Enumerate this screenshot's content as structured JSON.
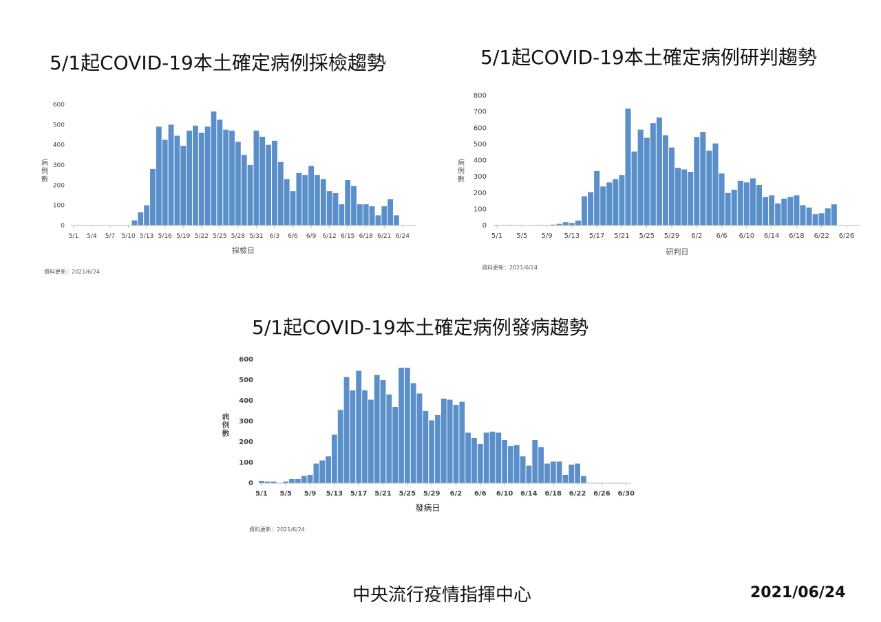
{
  "charts": {
    "sampling": {
      "title": "5/1起COVID-19本土確定病例採檢趨勢",
      "update": "資料更新：2021/6/24",
      "chart_data": {
        "type": "bar",
        "xlabel": "採檢日",
        "ylabel": "病例數",
        "ylim": [
          0,
          600
        ],
        "yticks": [
          0,
          100,
          200,
          300,
          400,
          500,
          600
        ],
        "start_label": "5/1",
        "tick_labels": [
          "5/1",
          "5/4",
          "5/7",
          "5/10",
          "5/13",
          "5/16",
          "5/19",
          "5/22",
          "5/25",
          "5/28",
          "5/31",
          "6/3",
          "6/6",
          "6/9",
          "6/12",
          "6/15",
          "6/18",
          "6/21",
          "6/24"
        ],
        "categories": [
          "5/1",
          "5/2",
          "5/3",
          "5/4",
          "5/5",
          "5/6",
          "5/7",
          "5/8",
          "5/9",
          "5/10",
          "5/11",
          "5/12",
          "5/13",
          "5/14",
          "5/15",
          "5/16",
          "5/17",
          "5/18",
          "5/19",
          "5/20",
          "5/21",
          "5/22",
          "5/23",
          "5/24",
          "5/25",
          "5/26",
          "5/27",
          "5/28",
          "5/29",
          "5/30",
          "5/31",
          "6/1",
          "6/2",
          "6/3",
          "6/4",
          "6/5",
          "6/6",
          "6/7",
          "6/8",
          "6/9",
          "6/10",
          "6/11",
          "6/12",
          "6/13",
          "6/14",
          "6/15",
          "6/16",
          "6/17",
          "6/18",
          "6/19",
          "6/20",
          "6/21",
          "6/22",
          "6/23",
          "6/24"
        ],
        "values": [
          0,
          0,
          0,
          0,
          0,
          0,
          0,
          0,
          0,
          0,
          25,
          65,
          100,
          280,
          490,
          425,
          500,
          445,
          395,
          470,
          495,
          460,
          490,
          565,
          525,
          475,
          470,
          415,
          350,
          300,
          470,
          440,
          400,
          420,
          315,
          230,
          170,
          260,
          250,
          295,
          250,
          230,
          170,
          160,
          105,
          225,
          195,
          105,
          105,
          95,
          50,
          95,
          130,
          50,
          0
        ]
      }
    },
    "confirmation": {
      "title": "5/1起COVID-19本土確定病例研判趨勢",
      "update": "資料更新：2021/6/24",
      "chart_data": {
        "type": "bar",
        "xlabel": "研判日",
        "ylabel": "病例數",
        "ylim": [
          0,
          800
        ],
        "yticks": [
          0,
          100,
          200,
          300,
          400,
          500,
          600,
          700,
          800
        ],
        "tick_labels": [
          "5/1",
          "5/5",
          "5/9",
          "5/13",
          "5/17",
          "5/21",
          "5/25",
          "5/29",
          "6/2",
          "6/6",
          "6/10",
          "6/14",
          "6/18",
          "6/22",
          "6/26"
        ],
        "categories": [
          "5/1",
          "5/2",
          "5/3",
          "5/4",
          "5/5",
          "5/6",
          "5/7",
          "5/8",
          "5/9",
          "5/10",
          "5/11",
          "5/12",
          "5/13",
          "5/14",
          "5/15",
          "5/16",
          "5/17",
          "5/18",
          "5/19",
          "5/20",
          "5/21",
          "5/22",
          "5/23",
          "5/24",
          "5/25",
          "5/26",
          "5/27",
          "5/28",
          "5/29",
          "5/30",
          "5/31",
          "6/1",
          "6/2",
          "6/3",
          "6/4",
          "6/5",
          "6/6",
          "6/7",
          "6/8",
          "6/9",
          "6/10",
          "6/11",
          "6/12",
          "6/13",
          "6/14",
          "6/15",
          "6/16",
          "6/17",
          "6/18",
          "6/19",
          "6/20",
          "6/21",
          "6/22",
          "6/23",
          "6/24",
          "6/25",
          "6/26",
          "6/27",
          "6/28"
        ],
        "values": [
          3,
          2,
          3,
          0,
          1,
          2,
          0,
          3,
          0,
          5,
          10,
          20,
          15,
          30,
          180,
          205,
          335,
          240,
          265,
          285,
          310,
          720,
          455,
          590,
          540,
          630,
          665,
          555,
          480,
          355,
          345,
          330,
          545,
          575,
          460,
          505,
          320,
          200,
          220,
          275,
          265,
          290,
          250,
          175,
          185,
          135,
          165,
          175,
          185,
          125,
          110,
          70,
          75,
          105,
          130,
          0,
          0,
          0,
          0
        ]
      }
    },
    "onset": {
      "title": "5/1起COVID-19本土確定病例發病趨勢",
      "update": "資料更新：2021/6/24",
      "chart_data": {
        "type": "bar",
        "xlabel": "發病日",
        "ylabel": "病例數",
        "ylim": [
          0,
          600
        ],
        "yticks": [
          0,
          100,
          200,
          300,
          400,
          500,
          600
        ],
        "tick_labels": [
          "5/1",
          "5/5",
          "5/9",
          "5/13",
          "5/17",
          "5/21",
          "5/25",
          "5/29",
          "6/2",
          "6/6",
          "6/10",
          "6/14",
          "6/18",
          "6/22",
          "6/26",
          "6/30"
        ],
        "categories": [
          "5/1",
          "5/2",
          "5/3",
          "5/4",
          "5/5",
          "5/6",
          "5/7",
          "5/8",
          "5/9",
          "5/10",
          "5/11",
          "5/12",
          "5/13",
          "5/14",
          "5/15",
          "5/16",
          "5/17",
          "5/18",
          "5/19",
          "5/20",
          "5/21",
          "5/22",
          "5/23",
          "5/24",
          "5/25",
          "5/26",
          "5/27",
          "5/28",
          "5/29",
          "5/30",
          "5/31",
          "6/1",
          "6/2",
          "6/3",
          "6/4",
          "6/5",
          "6/6",
          "6/7",
          "6/8",
          "6/9",
          "6/10",
          "6/11",
          "6/12",
          "6/13",
          "6/14",
          "6/15",
          "6/16",
          "6/17",
          "6/18",
          "6/19",
          "6/20",
          "6/21",
          "6/22",
          "6/23",
          "6/24",
          "6/25",
          "6/26",
          "6/27",
          "6/28",
          "6/29",
          "6/30"
        ],
        "values": [
          10,
          8,
          8,
          0,
          8,
          20,
          20,
          35,
          40,
          95,
          110,
          130,
          235,
          355,
          515,
          450,
          545,
          450,
          405,
          525,
          500,
          430,
          370,
          560,
          560,
          485,
          435,
          350,
          305,
          330,
          410,
          405,
          380,
          395,
          245,
          220,
          190,
          245,
          250,
          245,
          210,
          180,
          185,
          130,
          85,
          210,
          175,
          95,
          105,
          105,
          40,
          90,
          95,
          35,
          0,
          0,
          0,
          0,
          0,
          0,
          0
        ]
      }
    }
  },
  "bar_color": "#5b8fc9",
  "footer": {
    "org": "中央流行疫情指揮中心",
    "date": "2021/06/24"
  }
}
